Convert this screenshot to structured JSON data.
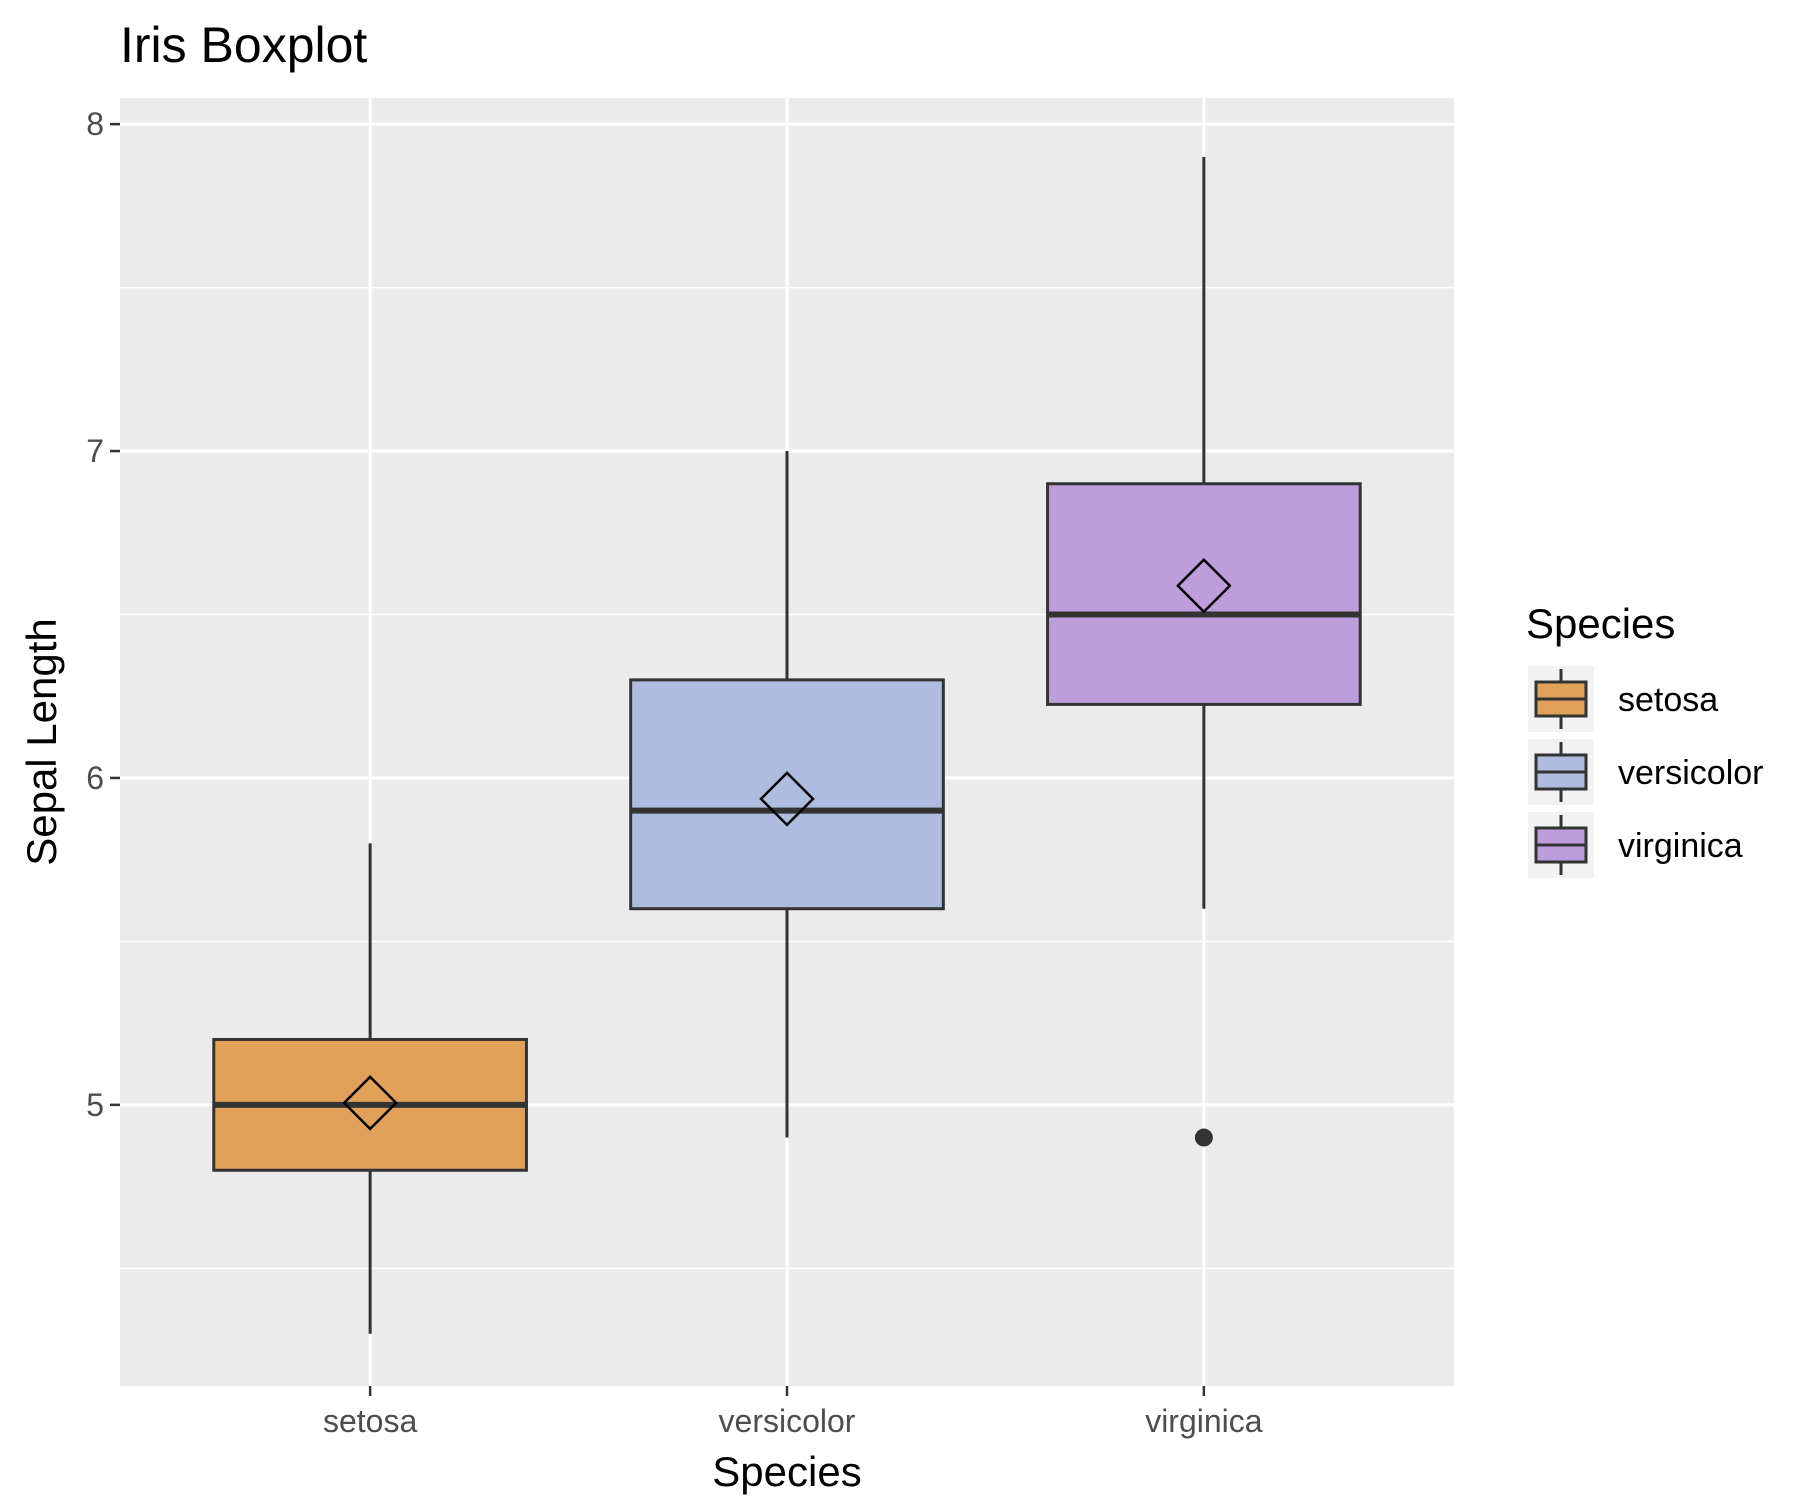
{
  "chart_data": {
    "type": "box",
    "title": "Iris Boxplot",
    "xlabel": "Species",
    "ylabel": "Sepal Length",
    "ylim": [
      4.14,
      8.08
    ],
    "y_ticks": [
      5,
      6,
      7,
      8
    ],
    "y_minor_ticks": [
      4.5,
      5.5,
      6.5,
      7.5
    ],
    "grid": true,
    "legend": {
      "title": "Species",
      "position": "right"
    },
    "categories": [
      "setosa",
      "versicolor",
      "virginica"
    ],
    "series": [
      {
        "name": "setosa",
        "color": "#E1A15A",
        "whisker_low": 4.3,
        "q1": 4.8,
        "median": 5.0,
        "q3": 5.2,
        "whisker_high": 5.8,
        "mean": 5.006,
        "outliers": []
      },
      {
        "name": "versicolor",
        "color": "#AEBCDF",
        "whisker_low": 4.9,
        "q1": 5.6,
        "median": 5.9,
        "q3": 6.3,
        "whisker_high": 7.0,
        "mean": 5.936,
        "outliers": []
      },
      {
        "name": "virginica",
        "color": "#BE9DDC",
        "whisker_low": 5.6,
        "q1": 6.225,
        "median": 6.5,
        "q3": 6.9,
        "whisker_high": 7.9,
        "mean": 6.588,
        "outliers": [
          4.9
        ]
      }
    ]
  }
}
